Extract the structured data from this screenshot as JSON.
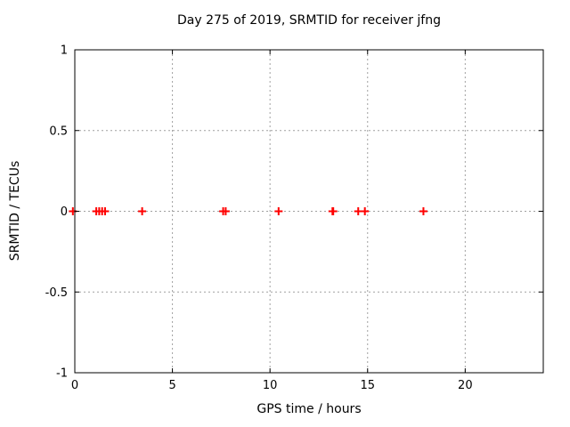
{
  "chart_data": {
    "type": "scatter",
    "title": "Day 275 of 2019, SRMTID for receiver jfng",
    "xlabel": "GPS time / hours",
    "ylabel": "SRMTID / TECUs",
    "xlim": [
      0,
      24
    ],
    "ylim": [
      -1,
      1
    ],
    "xticks": [
      0,
      5,
      10,
      15,
      20
    ],
    "xtick_labels": [
      "0",
      "5",
      "10",
      "15",
      "20"
    ],
    "yticks": [
      -1,
      -0.5,
      0,
      0.5,
      1
    ],
    "ytick_labels": [
      "-1",
      "-0.5",
      "0",
      "0.5",
      "1"
    ],
    "grid": true,
    "grid_style": "dotted",
    "legend_position": "none",
    "marker": {
      "shape": "plus",
      "size": 9,
      "stroke_width": 2,
      "color": "#ff0000"
    },
    "colors": {
      "background": "#ffffff",
      "border": "#000000",
      "grid": "#a0a0a0",
      "text": "#000000",
      "series": "#ff0000"
    },
    "series": [
      {
        "name": "SRMTID",
        "points": [
          [
            -0.1,
            0
          ],
          [
            1.1,
            0
          ],
          [
            1.25,
            0
          ],
          [
            1.4,
            0
          ],
          [
            1.55,
            0
          ],
          [
            3.45,
            0
          ],
          [
            7.6,
            0
          ],
          [
            7.73,
            0
          ],
          [
            10.44,
            0
          ],
          [
            13.2,
            0
          ],
          [
            13.24,
            0
          ],
          [
            14.52,
            0
          ],
          [
            14.86,
            0
          ],
          [
            17.86,
            0
          ]
        ]
      }
    ]
  }
}
